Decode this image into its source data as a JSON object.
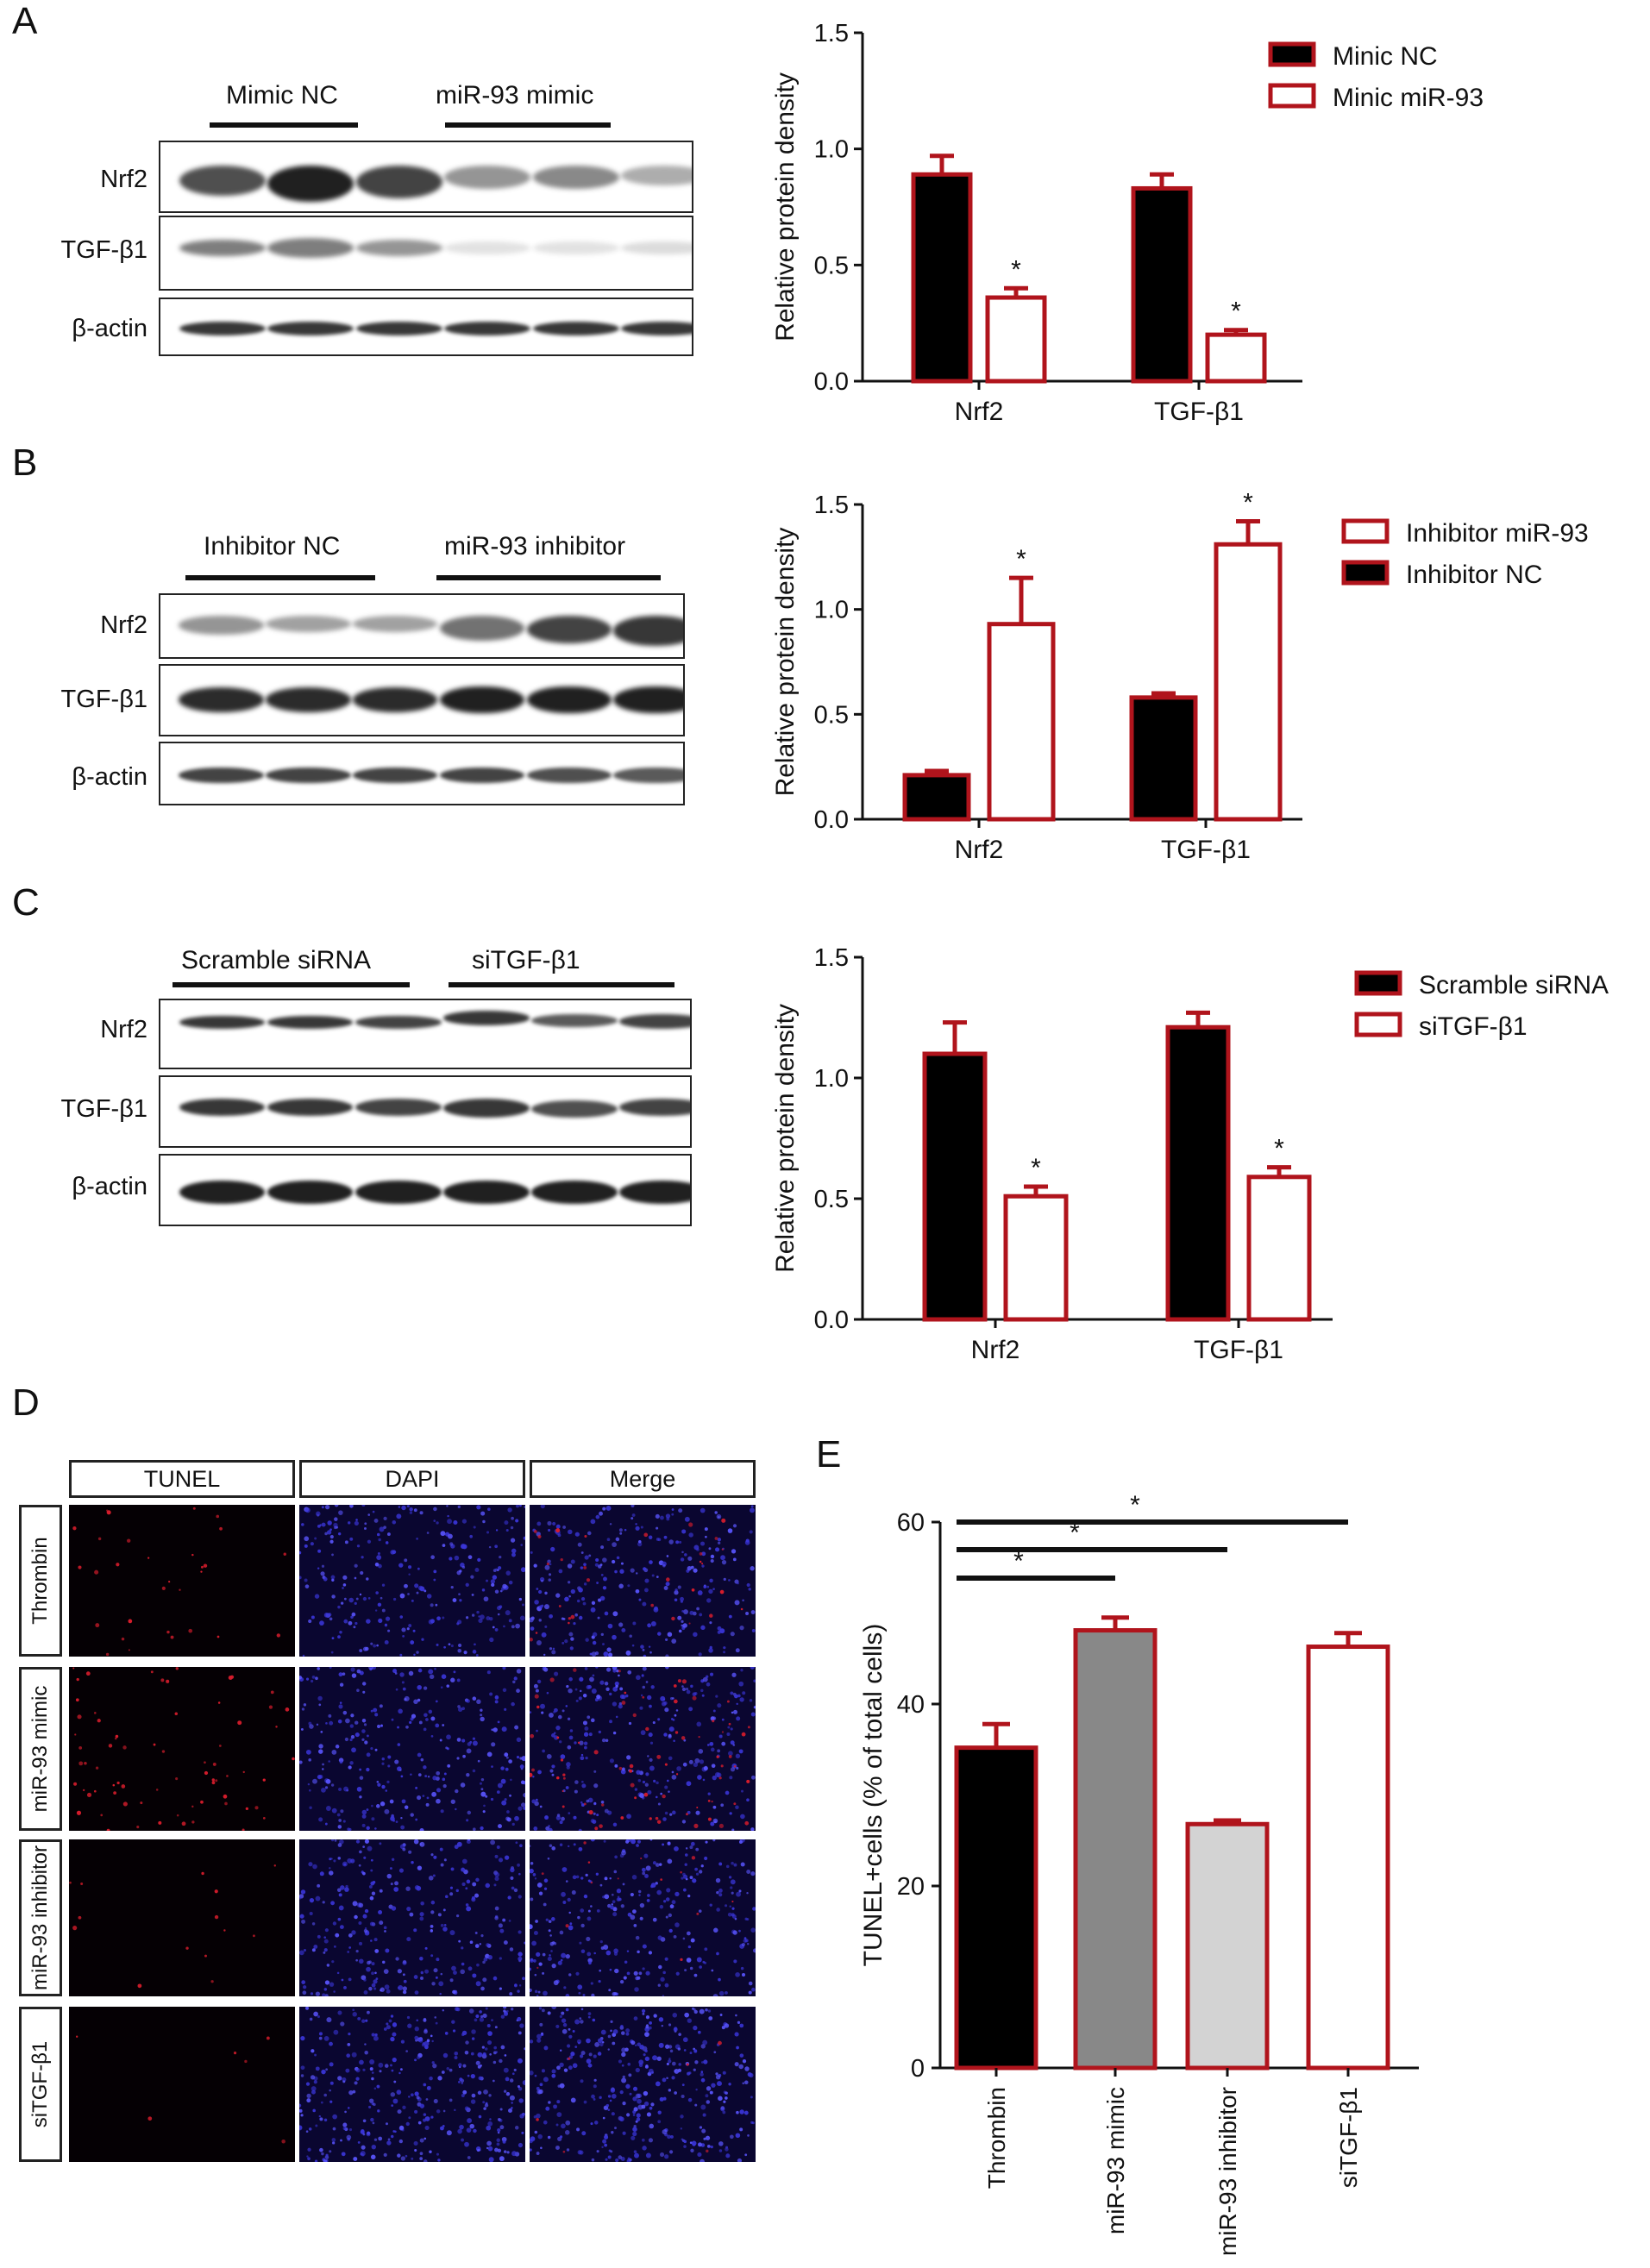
{
  "panels": {
    "A": {
      "letter": "A",
      "blot": {
        "groups": [
          "Mimic NC",
          "miR-93 mimic"
        ],
        "rows": [
          "Nrf2",
          "TGF-β1",
          "β-actin"
        ]
      },
      "chart_data": {
        "type": "bar",
        "categories": [
          "Nrf2",
          "TGF-β1"
        ],
        "series": [
          {
            "name": "Minic NC",
            "values": [
              0.89,
              0.83
            ],
            "errors": [
              0.08,
              0.06
            ],
            "fill": "#000000",
            "star": [
              false,
              false
            ]
          },
          {
            "name": "Minic miR-93",
            "values": [
              0.36,
              0.2
            ],
            "errors": [
              0.04,
              0.02
            ],
            "fill": "#ffffff",
            "star": [
              true,
              true
            ]
          }
        ],
        "ylabel": "Relative protein density",
        "ylim": [
          0,
          1.5
        ],
        "yticks": [
          "0.0",
          "0.5",
          "1.0",
          "1.5"
        ],
        "legend": "top-right"
      }
    },
    "B": {
      "letter": "B",
      "blot": {
        "groups": [
          "Inhibitor NC",
          "miR-93 inhibitor"
        ],
        "rows": [
          "Nrf2",
          "TGF-β1",
          "β-actin"
        ]
      },
      "chart_data": {
        "type": "bar",
        "categories": [
          "Nrf2",
          "TGF-β1"
        ],
        "series": [
          {
            "name": "Inhibitor NC",
            "values": [
              0.21,
              0.58
            ],
            "errors": [
              0.02,
              0.02
            ],
            "fill": "#000000",
            "star": [
              false,
              false
            ]
          },
          {
            "name": "Inhibitor miR-93",
            "values": [
              0.93,
              1.31
            ],
            "errors": [
              0.22,
              0.11
            ],
            "fill": "#ffffff",
            "star": [
              true,
              true
            ]
          }
        ],
        "legend_order": [
          1,
          0
        ],
        "ylabel": "Relative protein density",
        "ylim": [
          0,
          1.5
        ],
        "yticks": [
          "0.0",
          "0.5",
          "1.0",
          "1.5"
        ],
        "legend": "top-right"
      }
    },
    "C": {
      "letter": "C",
      "blot": {
        "groups": [
          "Scramble siRNA",
          "siTGF-β1"
        ],
        "rows": [
          "Nrf2",
          "TGF-β1",
          "β-actin"
        ]
      },
      "chart_data": {
        "type": "bar",
        "categories": [
          "Nrf2",
          "TGF-β1"
        ],
        "series": [
          {
            "name": "Scramble siRNA",
            "values": [
              1.1,
              1.21
            ],
            "errors": [
              0.13,
              0.06
            ],
            "fill": "#000000",
            "star": [
              false,
              false
            ]
          },
          {
            "name": "siTGF-β1",
            "values": [
              0.51,
              0.59
            ],
            "errors": [
              0.04,
              0.04
            ],
            "fill": "#ffffff",
            "star": [
              true,
              true
            ]
          }
        ],
        "ylabel": "Relative protein density",
        "ylim": [
          0,
          1.5
        ],
        "yticks": [
          "0.0",
          "0.5",
          "1.0",
          "1.5"
        ],
        "legend": "top-right"
      }
    },
    "D": {
      "letter": "D",
      "columns": [
        "TUNEL",
        "DAPI",
        "Merge"
      ],
      "rows": [
        "Thrombin",
        "miR-93 mimic",
        "miR-93 inhibitor",
        "siTGF-β1"
      ]
    },
    "E": {
      "letter": "E",
      "chart_data": {
        "type": "bar",
        "categories": [
          "Thrombin",
          "miR-93 mimic",
          "miR-93 inhibitor",
          "siTGF-β1"
        ],
        "values": [
          35.2,
          48.1,
          26.8,
          46.3
        ],
        "errors": [
          2.6,
          1.4,
          0.4,
          1.5
        ],
        "fills": [
          "#000000",
          "#888888",
          "#d3d3d3",
          "#ffffff"
        ],
        "ylabel": "TUNEL+cells (% of total cells)",
        "ylim": [
          0,
          60
        ],
        "yticks": [
          "0",
          "20",
          "40",
          "60"
        ],
        "comparisons": [
          {
            "from": 0,
            "to": 1,
            "label": "*"
          },
          {
            "from": 0,
            "to": 2,
            "label": "*"
          },
          {
            "from": 0,
            "to": 3,
            "label": "*"
          }
        ]
      }
    }
  },
  "colors": {
    "bar_edge": "#b0141c",
    "axis": "#111111"
  }
}
